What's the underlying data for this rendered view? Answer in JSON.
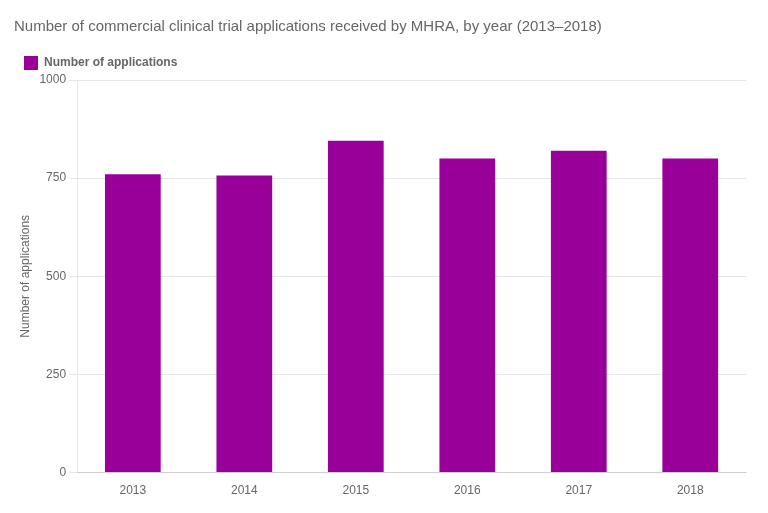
{
  "chart_data": {
    "type": "bar",
    "title": "Number of commercial clinical trial applications received by MHRA, by year (2013–2018)",
    "categories": [
      "2013",
      "2014",
      "2015",
      "2016",
      "2017",
      "2018"
    ],
    "series": [
      {
        "name": "Number of applications",
        "color": "#990099",
        "values": [
          760,
          757,
          845,
          800,
          820,
          800
        ]
      }
    ],
    "ylabel": "Number of applications",
    "ylim": [
      0,
      1000
    ],
    "yticks": [
      0,
      250,
      500,
      750,
      1000
    ],
    "grid": true,
    "legend": "upper left"
  }
}
